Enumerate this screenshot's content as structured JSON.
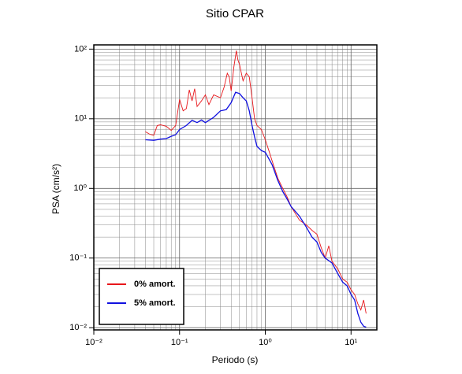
{
  "chart_data": {
    "type": "line",
    "title": "Sitio CPAR",
    "xlabel": "Periodo (s)",
    "ylabel": "PSA (cm/s²)",
    "xscale": "log",
    "yscale": "log",
    "grid": true,
    "legend": "lower left",
    "xlim": [
      0.01,
      20
    ],
    "ylim": [
      0.0093,
      115
    ],
    "xticks": [
      {
        "value": 0.01,
        "label": "10⁻²"
      },
      {
        "value": 0.1,
        "label": "10⁻¹"
      },
      {
        "value": 1,
        "label": "10⁰"
      },
      {
        "value": 10,
        "label": "10¹"
      }
    ],
    "yticks": [
      {
        "value": 0.01,
        "label": "10⁻²"
      },
      {
        "value": 0.1,
        "label": "10⁻¹"
      },
      {
        "value": 1,
        "label": "10⁰"
      },
      {
        "value": 10,
        "label": "10¹"
      },
      {
        "value": 100,
        "label": "10²"
      }
    ],
    "xminorticks": [
      0.02,
      0.03,
      0.04,
      0.05,
      0.06,
      0.07,
      0.08,
      0.09,
      0.2,
      0.3,
      0.4,
      0.5,
      0.6,
      0.7,
      0.8,
      0.9,
      2,
      3,
      4,
      5,
      6,
      7,
      8,
      9
    ],
    "yminorticks": [
      0.02,
      0.03,
      0.04,
      0.05,
      0.06,
      0.07,
      0.08,
      0.09,
      0.2,
      0.3,
      0.4,
      0.5,
      0.6,
      0.7,
      0.8,
      0.9,
      2,
      3,
      4,
      5,
      6,
      7,
      8,
      9,
      20,
      30,
      40,
      50,
      60,
      70,
      80,
      90
    ],
    "series": [
      {
        "name": "0% amort.",
        "color": "#e8161b",
        "x": [
          0.04,
          0.045,
          0.05,
          0.055,
          0.06,
          0.07,
          0.08,
          0.09,
          0.1,
          0.11,
          0.12,
          0.13,
          0.14,
          0.15,
          0.16,
          0.18,
          0.2,
          0.22,
          0.25,
          0.3,
          0.33,
          0.36,
          0.38,
          0.4,
          0.43,
          0.46,
          0.48,
          0.5,
          0.55,
          0.6,
          0.65,
          0.7,
          0.75,
          0.8,
          0.9,
          1.0,
          1.1,
          1.2,
          1.4,
          1.6,
          1.8,
          2,
          2.5,
          3,
          3.5,
          4,
          4.5,
          5,
          5.5,
          6,
          7,
          8,
          9,
          10,
          11,
          12,
          13,
          14,
          15
        ],
        "values": [
          6.5,
          6.0,
          5.8,
          8.0,
          8.2,
          7.8,
          6.8,
          8.0,
          19,
          13,
          14,
          26,
          18,
          27,
          15,
          18,
          22,
          16,
          22,
          20,
          28,
          45,
          40,
          25,
          55,
          95,
          70,
          60,
          35,
          45,
          40,
          20,
          10,
          8,
          7,
          5,
          3.5,
          2.5,
          1.4,
          1.0,
          0.75,
          0.55,
          0.35,
          0.3,
          0.25,
          0.22,
          0.14,
          0.1,
          0.15,
          0.09,
          0.07,
          0.05,
          0.045,
          0.035,
          0.03,
          0.022,
          0.018,
          0.025,
          0.016
        ]
      },
      {
        "name": "5% amort.",
        "color": "#1010e0",
        "x": [
          0.04,
          0.05,
          0.06,
          0.07,
          0.08,
          0.09,
          0.1,
          0.12,
          0.14,
          0.16,
          0.18,
          0.2,
          0.25,
          0.3,
          0.35,
          0.4,
          0.45,
          0.5,
          0.55,
          0.6,
          0.65,
          0.7,
          0.75,
          0.8,
          0.9,
          1.0,
          1.2,
          1.4,
          1.6,
          1.8,
          2,
          2.5,
          3,
          3.5,
          4,
          4.5,
          5,
          6,
          7,
          8,
          9,
          10,
          11,
          12,
          13,
          14,
          15
        ],
        "values": [
          5.0,
          4.9,
          5.1,
          5.2,
          5.6,
          5.9,
          7.0,
          8.0,
          9.5,
          8.8,
          9.6,
          8.8,
          10.5,
          13,
          13.5,
          17,
          24,
          23,
          20,
          18,
          13,
          8,
          5.5,
          4,
          3.5,
          3.3,
          2.2,
          1.3,
          0.9,
          0.7,
          0.55,
          0.4,
          0.28,
          0.2,
          0.17,
          0.12,
          0.1,
          0.085,
          0.06,
          0.045,
          0.04,
          0.03,
          0.025,
          0.016,
          0.012,
          0.0105,
          0.0102
        ]
      }
    ]
  }
}
